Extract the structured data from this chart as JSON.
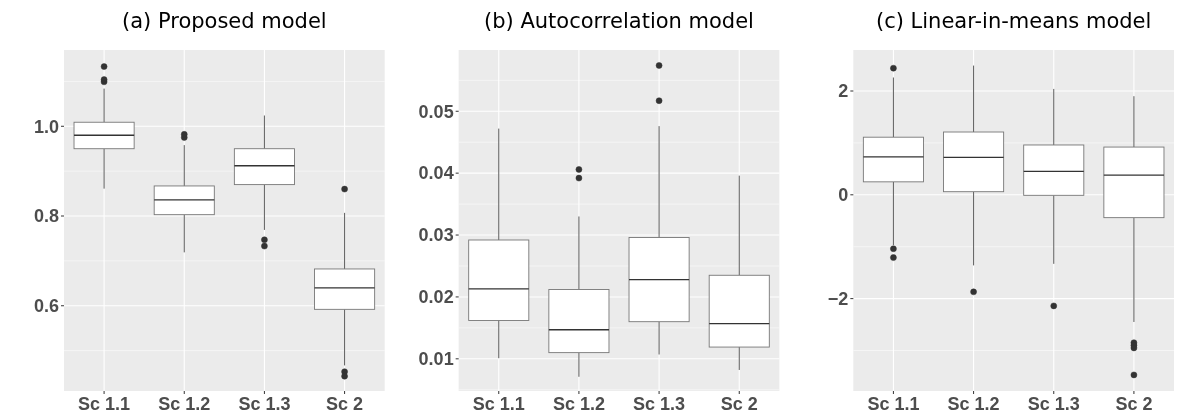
{
  "chart_data": [
    {
      "type": "box",
      "title": "(a) Proposed model",
      "categories": [
        "Sc 1.1",
        "Sc 1.2",
        "Sc 1.3",
        "Sc 2"
      ],
      "ylim": [
        0.41,
        1.17
      ],
      "yticks": [
        0.6,
        0.8,
        {
          "value": 1.0,
          "label": "1.0"
        }
      ],
      "grid": true,
      "boxes": [
        {
          "low": 0.861,
          "q1": 0.95,
          "median": 0.98,
          "q3": 1.009,
          "high": 1.084,
          "outliers": [
            1.099,
            1.104,
            1.133
          ]
        },
        {
          "low": 0.719,
          "q1": 0.803,
          "median": 0.836,
          "q3": 0.867,
          "high": 0.958,
          "outliers": [
            0.975,
            0.982
          ]
        },
        {
          "low": 0.769,
          "q1": 0.87,
          "median": 0.912,
          "q3": 0.95,
          "high": 1.024,
          "outliers": [
            0.733,
            0.747
          ]
        },
        {
          "low": 0.467,
          "q1": 0.592,
          "median": 0.64,
          "q3": 0.682,
          "high": 0.807,
          "outliers": [
            0.86,
            0.453,
            0.443
          ]
        }
      ]
    },
    {
      "type": "box",
      "title": "(b) Autocorrelation model",
      "categories": [
        "Sc 1.1",
        "Sc 1.2",
        "Sc 1.3",
        "Sc 2"
      ],
      "ylim": [
        0.0048,
        0.0599
      ],
      "yticks": [
        0.01,
        0.02,
        0.03,
        0.04,
        0.05
      ],
      "grid": true,
      "boxes": [
        {
          "low": 0.0101,
          "q1": 0.0162,
          "median": 0.0213,
          "q3": 0.0292,
          "high": 0.0472
        },
        {
          "low": 0.0071,
          "q1": 0.011,
          "median": 0.0147,
          "q3": 0.0212,
          "high": 0.033,
          "outliers": [
            0.0392,
            0.0406
          ]
        },
        {
          "low": 0.0107,
          "q1": 0.016,
          "median": 0.0228,
          "q3": 0.0296,
          "high": 0.0476,
          "outliers": [
            0.0517,
            0.0574
          ]
        },
        {
          "low": 0.0082,
          "q1": 0.0119,
          "median": 0.0157,
          "q3": 0.0235,
          "high": 0.0396
        }
      ]
    },
    {
      "type": "box",
      "title": "(c) Linear-in-means model",
      "categories": [
        "Sc 1.1",
        "Sc 1.2",
        "Sc 1.3",
        "Sc 2"
      ],
      "ylim": [
        -3.78,
        2.79
      ],
      "yticks": [
        {
          "value": -2,
          "label": "−2"
        },
        0,
        2
      ],
      "grid": true,
      "boxes": [
        {
          "low": -0.97,
          "q1": 0.25,
          "median": 0.73,
          "q3": 1.11,
          "high": 2.26,
          "outliers": [
            2.44,
            -1.04,
            -1.21
          ]
        },
        {
          "low": -1.36,
          "q1": 0.06,
          "median": 0.72,
          "q3": 1.21,
          "high": 2.49,
          "outliers": [
            -1.87
          ]
        },
        {
          "low": -1.33,
          "q1": -0.01,
          "median": 0.45,
          "q3": 0.96,
          "high": 2.04,
          "outliers": [
            -2.14
          ]
        },
        {
          "low": -2.45,
          "q1": -0.44,
          "median": 0.38,
          "q3": 0.92,
          "high": 1.9,
          "outliers": [
            -2.85,
            -2.9,
            -2.95,
            -3.47
          ]
        }
      ]
    }
  ]
}
